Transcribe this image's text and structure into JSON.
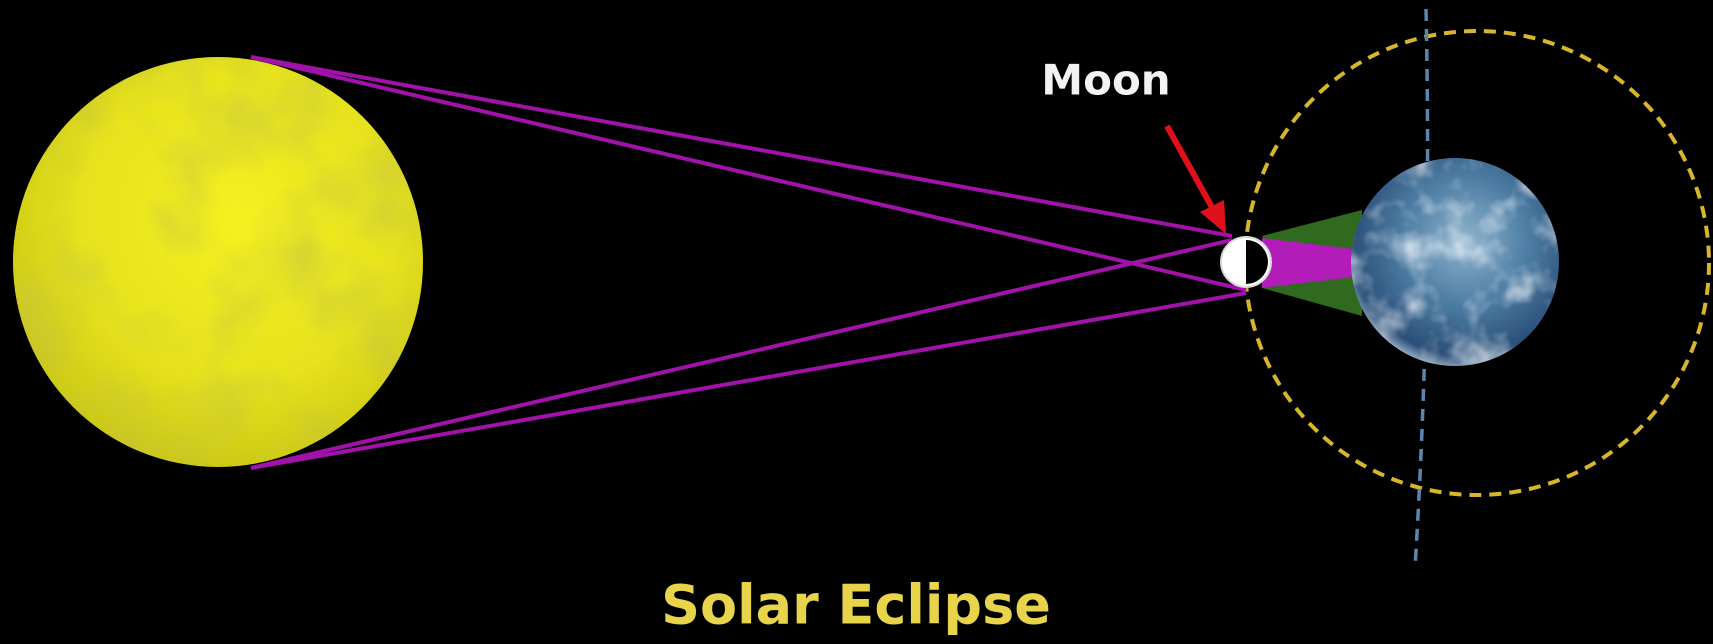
{
  "labels": {
    "moon": "Moon"
  },
  "title": "Solar Eclipse"
}
